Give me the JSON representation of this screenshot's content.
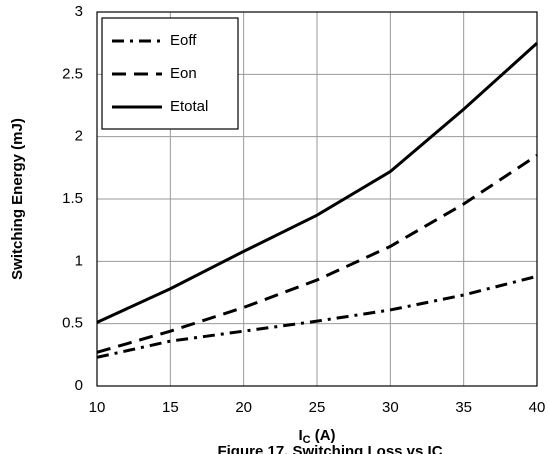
{
  "chart_data": {
    "type": "line",
    "ylabel": "Switching Energy (mJ)",
    "xlabel": "I",
    "xlabel_sub": "C",
    "xlabel_suffix": " (A)",
    "caption": "Figure 17. Switching Loss vs IC",
    "x": [
      10,
      15,
      20,
      25,
      30,
      35,
      40
    ],
    "series": [
      {
        "name": "Eoff",
        "color": "#000000",
        "style": "dashdot",
        "values": [
          0.23,
          0.36,
          0.44,
          0.52,
          0.61,
          0.73,
          0.88
        ]
      },
      {
        "name": "Eon",
        "color": "#000000",
        "style": "dashed",
        "values": [
          0.27,
          0.44,
          0.63,
          0.85,
          1.12,
          1.46,
          1.85
        ]
      },
      {
        "name": "Etotal",
        "color": "#000000",
        "style": "solid",
        "values": [
          0.51,
          0.78,
          1.08,
          1.37,
          1.72,
          2.22,
          2.75
        ]
      }
    ],
    "xlim": [
      10,
      40
    ],
    "xticks": [
      10,
      15,
      20,
      25,
      30,
      35,
      40
    ],
    "ylim": [
      0,
      3
    ],
    "yticks": [
      0,
      0.5,
      1,
      1.5,
      2,
      2.5,
      3
    ],
    "grid": true,
    "legend": "upper-left"
  }
}
